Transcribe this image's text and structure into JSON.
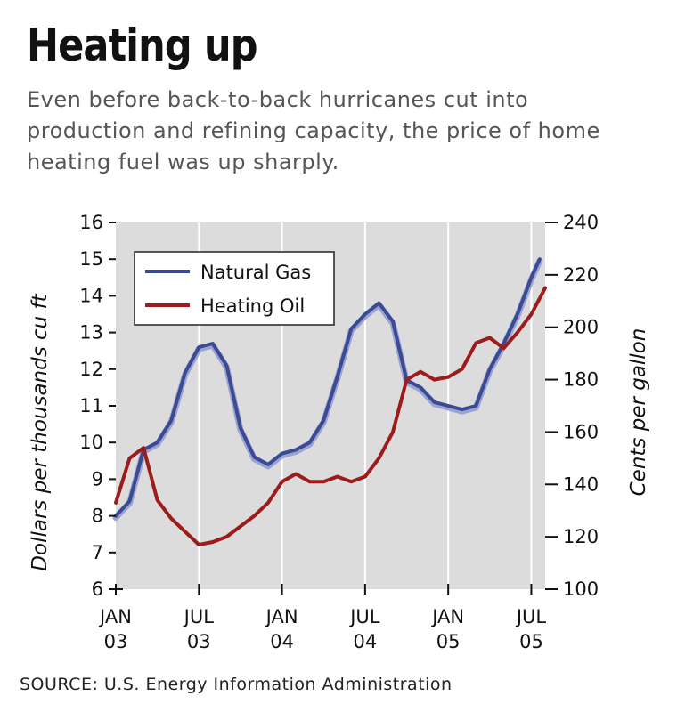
{
  "header": {
    "title": "Heating up",
    "subtitle": "Even before back-to-back hurricanes cut into production and refining capacity, the price of home heating fuel was up sharply."
  },
  "source": "SOURCE: U.S. Energy Information Administration",
  "colors": {
    "natural_gas": "#3c4a94",
    "heating_oil": "#9e1b1b",
    "plot_background": "#dcdcdc",
    "gridline": "#ffffff"
  },
  "chart_data": {
    "type": "line",
    "title": "Heating up",
    "xlabel": "",
    "ylabel": "Dollars per thousands cu ft",
    "y2label": "Cents per gallon",
    "ylim": [
      6,
      16
    ],
    "y2lim": [
      100,
      240
    ],
    "yticks": [
      "6",
      "7",
      "8",
      "9",
      "10",
      "11",
      "12",
      "13",
      "14",
      "15",
      "16"
    ],
    "y2ticks": [
      "100",
      "120",
      "140",
      "160",
      "180",
      "200",
      "220",
      "240"
    ],
    "xlim": [
      0,
      31
    ],
    "xticks": [
      {
        "x": 0,
        "line1": "JAN",
        "line2": "03"
      },
      {
        "x": 6,
        "line1": "JUL",
        "line2": "03"
      },
      {
        "x": 12,
        "line1": "JAN",
        "line2": "04"
      },
      {
        "x": 18,
        "line1": "JUL",
        "line2": "04"
      },
      {
        "x": 24,
        "line1": "JAN",
        "line2": "05"
      },
      {
        "x": 30,
        "line1": "JUL",
        "line2": "05"
      }
    ],
    "grid": true,
    "legend_position": "top-left",
    "series": [
      {
        "name": "Natural Gas",
        "axis": "left",
        "x": [
          0,
          1,
          2,
          3,
          4,
          5,
          6,
          7,
          8,
          9,
          10,
          11,
          12,
          13,
          14,
          15,
          16,
          17,
          18,
          19,
          20,
          21,
          22,
          23,
          24,
          25,
          26,
          27,
          28,
          29,
          30,
          30.6
        ],
        "values": [
          8.0,
          8.4,
          9.8,
          10.0,
          10.6,
          11.9,
          12.6,
          12.7,
          12.1,
          10.4,
          9.6,
          9.4,
          9.7,
          9.8,
          10.0,
          10.6,
          11.8,
          13.1,
          13.5,
          13.8,
          13.3,
          11.7,
          11.5,
          11.1,
          11.0,
          10.9,
          11.0,
          12.0,
          12.7,
          13.5,
          14.5,
          15.0
        ]
      },
      {
        "name": "Heating Oil",
        "axis": "right",
        "x": [
          0,
          1,
          2,
          3,
          4,
          5,
          6,
          7,
          8,
          9,
          10,
          11,
          12,
          13,
          14,
          15,
          16,
          17,
          18,
          19,
          20,
          21,
          22,
          23,
          24,
          25,
          26,
          27,
          28,
          29,
          30,
          31
        ],
        "values": [
          133,
          150,
          154,
          134,
          127,
          122,
          117,
          118,
          120,
          124,
          128,
          133,
          141,
          144,
          141,
          141,
          143,
          141,
          143,
          150,
          160,
          180,
          183,
          180,
          181,
          184,
          194,
          196,
          192,
          198,
          205,
          215
        ]
      }
    ]
  }
}
